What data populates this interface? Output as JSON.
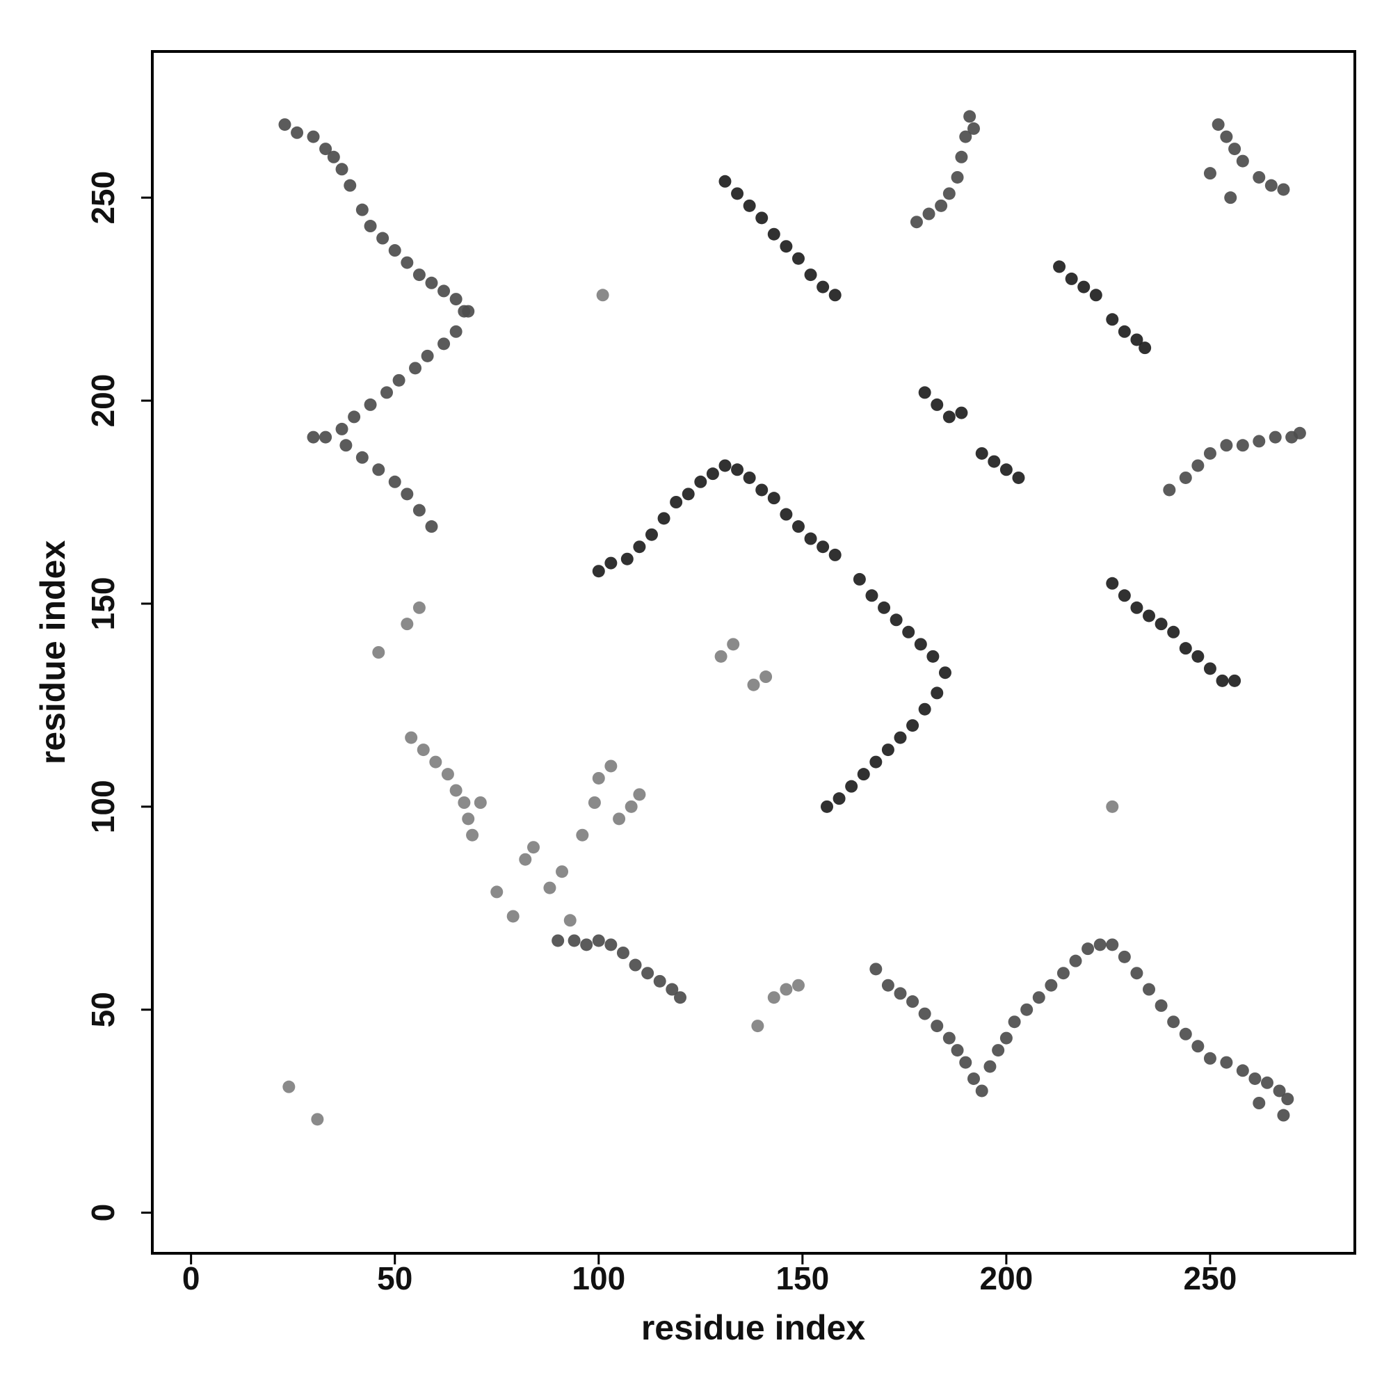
{
  "chart_data": {
    "type": "scatter",
    "x_label": "residue index",
    "y_label": "residue index",
    "xlim": [
      -9.5,
      285.5
    ],
    "ylim": [
      -10,
      286
    ],
    "xticks": [
      0,
      50,
      100,
      150,
      200,
      250
    ],
    "yticks": [
      0,
      50,
      100,
      150,
      200,
      250
    ],
    "series": [
      {
        "color": "#4d4d4d",
        "x": [
          23,
          26,
          30,
          33,
          35,
          37,
          39,
          42,
          44,
          47,
          50,
          53,
          56,
          59,
          62,
          65,
          67,
          68,
          65,
          62,
          58,
          55,
          51,
          48,
          44,
          40,
          37,
          33,
          30,
          38,
          42,
          46,
          50,
          53,
          56,
          59,
          178,
          181,
          184,
          186,
          188,
          189,
          190,
          191,
          192,
          252,
          254,
          256,
          258,
          262,
          265,
          268,
          250,
          255,
          240,
          244,
          247,
          250,
          254,
          258,
          262,
          266,
          270,
          272,
          90,
          94,
          97,
          100,
          103,
          106,
          109,
          112,
          115,
          118,
          120,
          168,
          171,
          174,
          177,
          180,
          183,
          186,
          188,
          190,
          192,
          194,
          196,
          198,
          200,
          202,
          205,
          208,
          211,
          214,
          217,
          220,
          223,
          226,
          229,
          232,
          235,
          238,
          241,
          244,
          247,
          250,
          254,
          258,
          261,
          264,
          267,
          269,
          268,
          262
        ],
        "values": [
          268,
          266,
          265,
          262,
          260,
          257,
          253,
          247,
          243,
          240,
          237,
          234,
          231,
          229,
          227,
          225,
          222,
          222,
          217,
          214,
          211,
          208,
          205,
          202,
          199,
          196,
          193,
          191,
          191,
          189,
          186,
          183,
          180,
          177,
          173,
          169,
          244,
          246,
          248,
          251,
          255,
          260,
          265,
          270,
          267,
          268,
          265,
          262,
          259,
          255,
          253,
          252,
          256,
          250,
          178,
          181,
          184,
          187,
          189,
          189,
          190,
          191,
          191,
          192,
          67,
          67,
          66,
          67,
          66,
          64,
          61,
          59,
          57,
          55,
          53,
          60,
          56,
          54,
          52,
          49,
          46,
          43,
          40,
          37,
          33,
          30,
          36,
          40,
          43,
          47,
          50,
          53,
          56,
          59,
          62,
          65,
          66,
          66,
          63,
          59,
          55,
          51,
          47,
          44,
          41,
          38,
          37,
          35,
          33,
          32,
          30,
          28,
          24,
          27
        ]
      },
      {
        "color": "#1f1f1f",
        "x": [
          131,
          134,
          137,
          140,
          143,
          146,
          149,
          152,
          155,
          158,
          213,
          216,
          219,
          222,
          226,
          229,
          232,
          234,
          180,
          183,
          186,
          189,
          194,
          197,
          200,
          203,
          100,
          103,
          107,
          110,
          113,
          116,
          119,
          122,
          125,
          128,
          131,
          134,
          137,
          140,
          143,
          146,
          149,
          152,
          155,
          158,
          164,
          167,
          170,
          173,
          176,
          179,
          182,
          185,
          183,
          180,
          177,
          174,
          171,
          168,
          165,
          162,
          159,
          156,
          226,
          229,
          232,
          235,
          238,
          241,
          244,
          247,
          250,
          253,
          256
        ],
        "values": [
          254,
          251,
          248,
          245,
          241,
          238,
          235,
          231,
          228,
          226,
          233,
          230,
          228,
          226,
          220,
          217,
          215,
          213,
          202,
          199,
          196,
          197,
          187,
          185,
          183,
          181,
          158,
          160,
          161,
          164,
          167,
          171,
          175,
          177,
          180,
          182,
          184,
          183,
          181,
          178,
          176,
          172,
          169,
          166,
          164,
          162,
          156,
          152,
          149,
          146,
          143,
          140,
          137,
          133,
          128,
          124,
          120,
          117,
          114,
          111,
          108,
          105,
          102,
          100,
          155,
          152,
          149,
          147,
          145,
          143,
          139,
          137,
          134,
          131,
          131
        ]
      },
      {
        "color": "#808080",
        "x": [
          101,
          130,
          133,
          138,
          141,
          53,
          56,
          46,
          226,
          54,
          57,
          60,
          63,
          65,
          67,
          68,
          69,
          71,
          75,
          79,
          82,
          84,
          88,
          91,
          96,
          99,
          100,
          103,
          108,
          110,
          105,
          93,
          143,
          146,
          149,
          139,
          24,
          31
        ],
        "values": [
          226,
          137,
          140,
          130,
          132,
          145,
          149,
          138,
          100,
          117,
          114,
          111,
          108,
          104,
          101,
          97,
          93,
          101,
          79,
          73,
          87,
          90,
          80,
          84,
          93,
          101,
          107,
          110,
          100,
          103,
          97,
          72,
          53,
          55,
          56,
          46,
          31,
          23
        ]
      }
    ]
  }
}
